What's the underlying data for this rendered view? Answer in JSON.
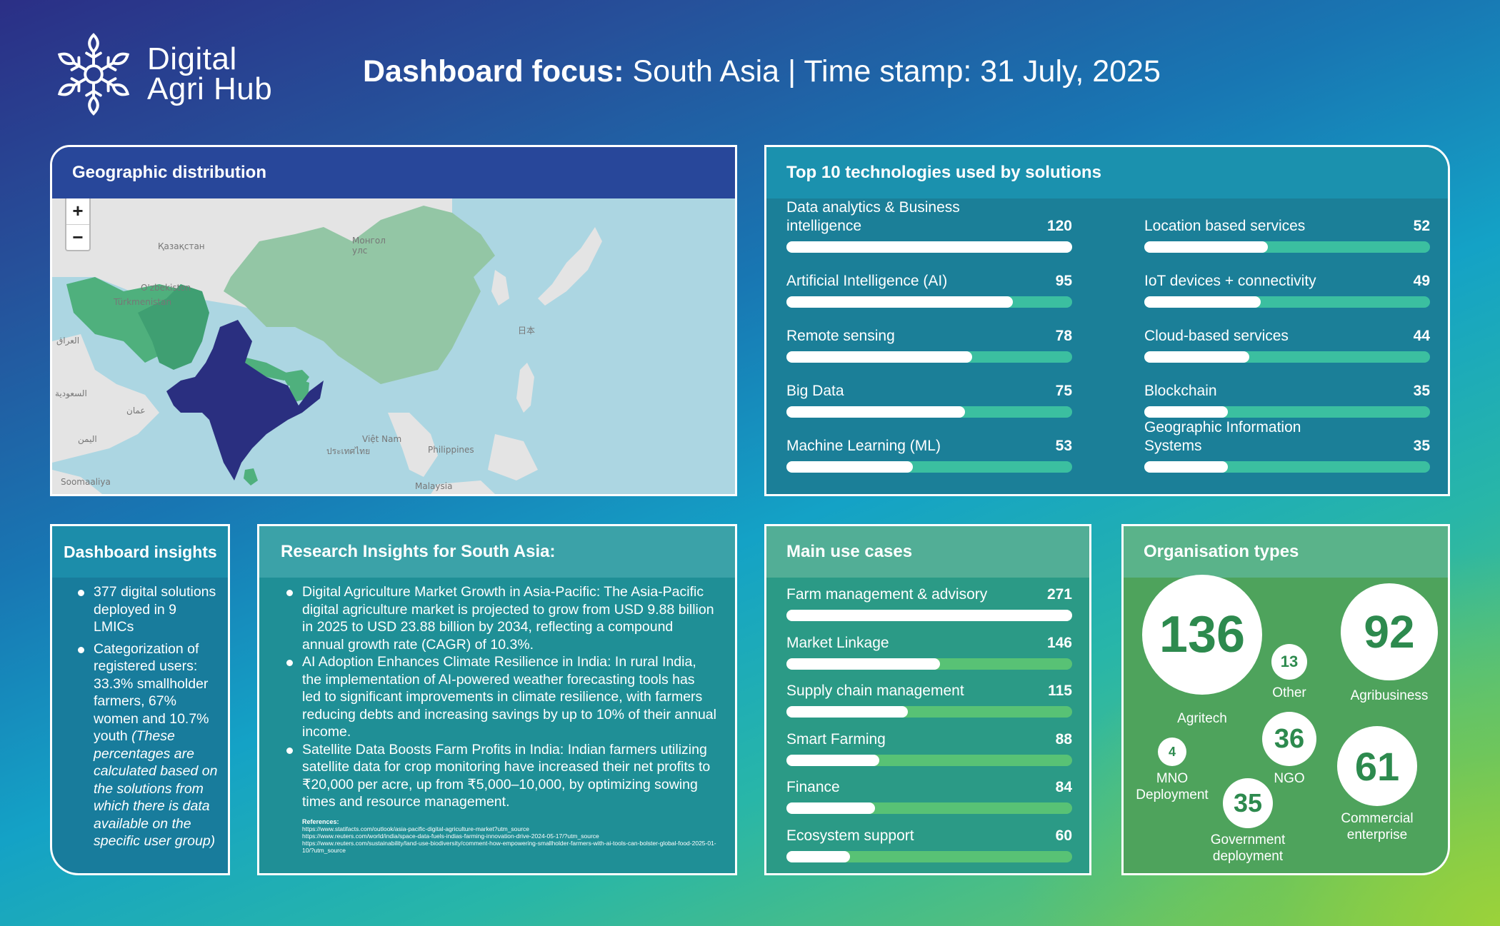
{
  "brand": {
    "name_line1": "Digital",
    "name_line2": "Agri Hub"
  },
  "header": {
    "focus_label": "Dashboard focus:",
    "focus_text": "South Asia | Time stamp: 31 July, 2025"
  },
  "geo": {
    "title": "Geographic distribution",
    "zoom_in": "+",
    "zoom_out": "−",
    "labels": {
      "kazakhstan": "Қазақстан",
      "mongolia": "Монгол улс",
      "uzbekistan": "O'zbekiston",
      "turkmenistan": "Türkmenistan",
      "japan": "日本",
      "iraq": "العراق",
      "saudi": "السعودية",
      "oman": "عمان",
      "yemen": "اليمن",
      "vietnam": "Việt Nam",
      "thailand": "ประเทศไทย",
      "philippines": "Philippines",
      "malaysia": "Malaysia",
      "somalia": "Soomaaliya"
    },
    "colors": {
      "focus": "#2a2f80",
      "neighbors": "#4fb07d",
      "china": "#93c6a5",
      "ocean": "#acd6e2",
      "land": "#e4e4e4"
    }
  },
  "technologies": {
    "title": "Top 10 technologies used by solutions",
    "max": 120,
    "items": [
      {
        "label": "Data analytics & Business intelligence",
        "value": 120
      },
      {
        "label": "Artificial Intelligence (AI)",
        "value": 95
      },
      {
        "label": "Remote sensing",
        "value": 78
      },
      {
        "label": "Big Data",
        "value": 75
      },
      {
        "label": "Machine Learning (ML)",
        "value": 53
      },
      {
        "label": "Location based services",
        "value": 52
      },
      {
        "label": "IoT devices + connectivity",
        "value": 49
      },
      {
        "label": "Cloud-based services",
        "value": 44
      },
      {
        "label": "Blockchain",
        "value": 35
      },
      {
        "label": "Geographic Information Systems",
        "value": 35
      }
    ]
  },
  "insights": {
    "title": "Dashboard insights",
    "item1": "377 digital solutions deployed in 9 LMICs",
    "item2_main": "Categorization of registered users: 33.3% smallholder farmers, 67% women and 10.7% youth ",
    "item2_note": "(These percentages are calculated based on the solutions from which there is data available on the specific user group)"
  },
  "research": {
    "title": "Research Insights for South Asia:",
    "items": [
      "Digital Agriculture Market Growth in Asia-Pacific: The Asia-Pacific digital agriculture market is projected to grow from USD 9.88 billion in 2025 to USD 23.88 billion by 2034, reflecting a compound annual growth rate (CAGR) of 10.3%.",
      "AI Adoption Enhances Climate Resilience in India: In rural India, the implementation of AI-powered weather forecasting tools has led to significant improvements in climate resilience, with farmers reducing debts and increasing savings by up to 10% of their annual income.",
      "Satellite Data Boosts Farm Profits in India: Indian farmers utilizing satellite data for crop monitoring have increased their net profits to ₹20,000 per acre, up from ₹5,000–10,000, by optimizing sowing times and resource management."
    ],
    "refs_title": "References:",
    "refs": [
      "https://www.statifacts.com/outlook/asia-pacific-digital-agriculture-market?utm_source",
      "https://www.reuters.com/world/india/space-data-fuels-indias-farming-innovation-drive-2024-05-17/?utm_source",
      "https://www.reuters.com/sustainability/land-use-biodiversity/comment-how-empowering-smallholder-farmers-with-ai-tools-can-bolster-global-food-2025-01-10/?utm_source"
    ]
  },
  "use_cases": {
    "title": "Main use cases",
    "max": 271,
    "items": [
      {
        "label": "Farm management & advisory",
        "value": 271
      },
      {
        "label": "Market Linkage",
        "value": 146
      },
      {
        "label": "Supply chain management",
        "value": 115
      },
      {
        "label": "Smart Farming",
        "value": 88
      },
      {
        "label": "Finance",
        "value": 84
      },
      {
        "label": "Ecosystem support",
        "value": 60
      }
    ]
  },
  "org_types": {
    "title": "Organisation types",
    "items": [
      {
        "label": "Agritech",
        "value": 136
      },
      {
        "label": "Agribusiness",
        "value": 92
      },
      {
        "label": "Commercial enterprise",
        "value": 61
      },
      {
        "label": "NGO",
        "value": 36
      },
      {
        "label": "Government deployment",
        "value": 35
      },
      {
        "label": "Other",
        "value": 13
      },
      {
        "label": "MNO Deployment",
        "value": 4
      }
    ]
  }
}
